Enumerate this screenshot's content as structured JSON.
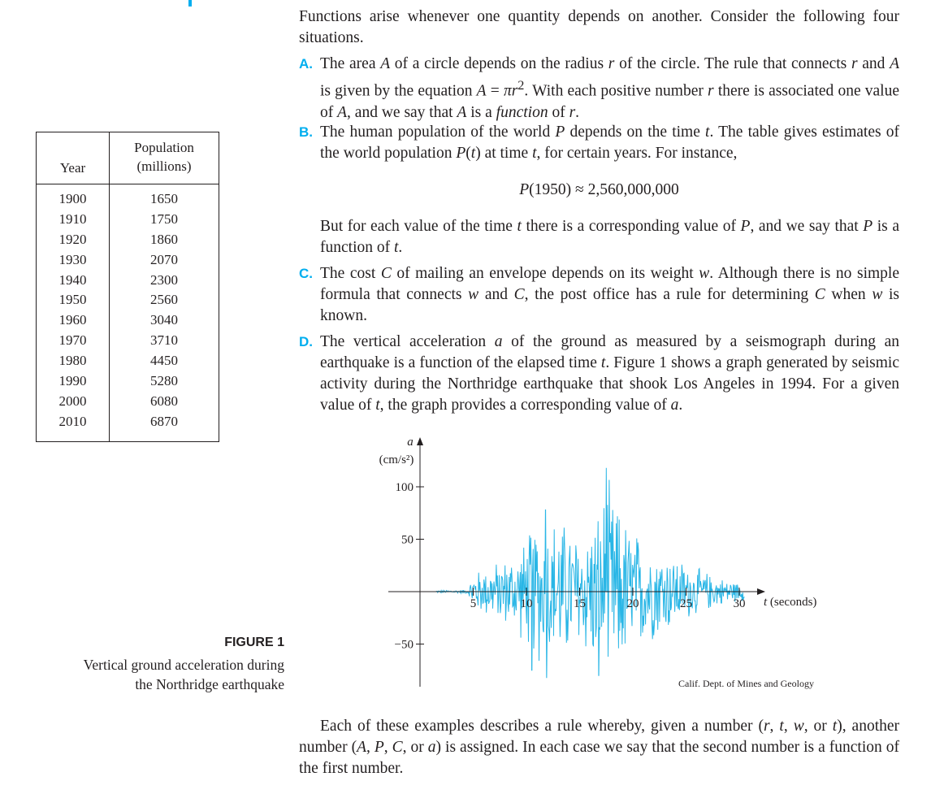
{
  "table": {
    "header_year": "Year",
    "header_pop_line1": "Population",
    "header_pop_line2": "(millions)",
    "rows": [
      {
        "year": "1900",
        "pop": "1650"
      },
      {
        "year": "1910",
        "pop": "1750"
      },
      {
        "year": "1920",
        "pop": "1860"
      },
      {
        "year": "1930",
        "pop": "2070"
      },
      {
        "year": "1940",
        "pop": "2300"
      },
      {
        "year": "1950",
        "pop": "2560"
      },
      {
        "year": "1960",
        "pop": "3040"
      },
      {
        "year": "1970",
        "pop": "3710"
      },
      {
        "year": "1980",
        "pop": "4450"
      },
      {
        "year": "1990",
        "pop": "5280"
      },
      {
        "year": "2000",
        "pop": "6080"
      },
      {
        "year": "2010",
        "pop": "6870"
      }
    ]
  },
  "intro": "Functions arise whenever one quantity depends on another. Consider the following four situations.",
  "items": {
    "a": {
      "label": "A.",
      "html": "The area <i>A</i> of a circle depends on the radius <i>r</i> of the circle. The rule that connects <i>r</i> and <i>A</i> is given by the equation <i>A</i> = <i>πr</i><sup>2</sup>. With each positive number <i>r</i> there is associated one value of <i>A</i>, and we say that <i>A</i> is a <i>function</i> of <i>r</i>."
    },
    "b": {
      "label": "B.",
      "html": "The human population of the world <i>P</i> depends on the time <i>t</i>. The table gives estimates of the world population <i>P</i>(<i>t</i>) at time <i>t</i>, for certain years. For instance,"
    },
    "b_formula": "<i>P</i>(1950) ≈ 2,560,000,000",
    "b_cont": "But for each value of the time <i>t</i> there is a corresponding value of <i>P</i>, and we say that <i>P</i> is a function of <i>t</i>.",
    "c": {
      "label": "C.",
      "html": "The cost <i>C</i> of mailing an envelope depends on its weight <i>w</i>. Although there is no simple formula that connects <i>w</i> and <i>C</i>, the post office has a rule for determining <i>C</i> when <i>w</i> is known."
    },
    "d": {
      "label": "D.",
      "html": "The vertical acceleration <i>a</i> of the ground as measured by a seismograph during an earthquake is a function of the elapsed time <i>t</i>. Figure 1 shows a graph generated by seismic activity during the Northridge earthquake that shook Los Angeles in 1994. For a given value of <i>t</i>, the graph provides a corresponding value of <i>a</i>."
    }
  },
  "closing": "Each of these examples describes a rule whereby, given a number (<i>r</i>, <i>t</i>, <i>w</i>, or <i>t</i>), another number (<i>A</i>, <i>P</i>, <i>C</i>, or <i>a</i>) is assigned. In each case we say that the second number is a function of the first number.",
  "figure": {
    "title": "FIGURE 1",
    "caption_line1": "Vertical ground acceleration during",
    "caption_line2": "the Northridge earthquake",
    "credit": "Calif. Dept. of Mines and Geology"
  },
  "chart_data": {
    "type": "line",
    "ylabel_var": "a",
    "ylabel_unit": "(cm/s²)",
    "xlabel": "t (seconds)",
    "xticks": [
      5,
      10,
      15,
      20,
      25,
      30
    ],
    "yticks": [
      100,
      50,
      -50
    ],
    "xlim": [
      0,
      32
    ],
    "ylim": [
      -90,
      120
    ],
    "color": "#29b6e6",
    "envelope": [
      {
        "t": 0,
        "amp": 1
      },
      {
        "t": 4.5,
        "amp": 2
      },
      {
        "t": 5,
        "amp": 20
      },
      {
        "t": 7,
        "amp": 30
      },
      {
        "t": 9,
        "amp": 40
      },
      {
        "t": 11,
        "amp": 75
      },
      {
        "t": 13,
        "amp": 80
      },
      {
        "t": 15,
        "amp": 60
      },
      {
        "t": 17,
        "amp": 90
      },
      {
        "t": 17.5,
        "amp": 118
      },
      {
        "t": 19,
        "amp": 80
      },
      {
        "t": 21,
        "amp": 55
      },
      {
        "t": 23,
        "amp": 45
      },
      {
        "t": 25,
        "amp": 30
      },
      {
        "t": 28,
        "amp": 15
      },
      {
        "t": 30,
        "amp": 10
      }
    ],
    "peaks": [
      {
        "t": 17.5,
        "a": 118
      },
      {
        "t": 11.8,
        "a": 78
      },
      {
        "t": 16.8,
        "a": -80
      },
      {
        "t": 11.9,
        "a": -82
      },
      {
        "t": 10.5,
        "a": -75
      }
    ]
  }
}
